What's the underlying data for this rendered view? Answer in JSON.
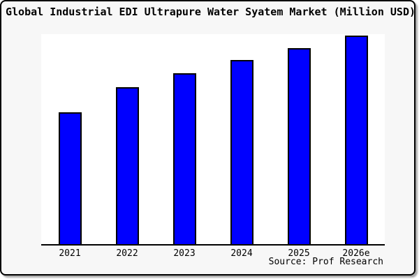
{
  "window": {
    "title": "Global Industrial EDI Ultrapure Water Syatem Market (Million USD)"
  },
  "source_label": "Source: Prof Research",
  "colors": {
    "bar_fill": "#0000ff",
    "bar_border": "#000000",
    "axis": "#000000",
    "window_background": "#f7f7f7",
    "plot_background": "#ffffff",
    "frame_border": "#000000",
    "text": "#000000"
  },
  "chart_data": {
    "type": "bar",
    "title": "Global Industrial EDI Ultrapure Water Syatem Market (Million USD)",
    "categories": [
      "2021",
      "2022",
      "2023",
      "2024",
      "2025",
      "2026e"
    ],
    "values": [
      63.2,
      75.3,
      81.9,
      88.3,
      94.0,
      100.0
    ],
    "values_note": "relative bar heights as % of tallest bar; chart shows no numeric y-axis, gridlines, or data labels",
    "xlabel": "",
    "ylabel": "",
    "ylim": [
      0,
      100
    ],
    "grid": false,
    "legend": false,
    "y_axis_shown": false,
    "x_axis_line": true,
    "source": "Source: Prof Research"
  }
}
